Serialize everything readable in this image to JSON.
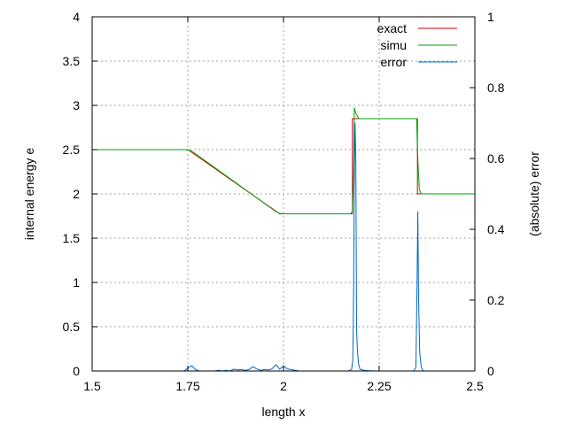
{
  "chart_data": {
    "type": "line",
    "xlabel": "length x",
    "ylabel": "internal energy e",
    "y2label": "(absolute) error",
    "xlim": [
      1.5,
      2.5
    ],
    "ylim": [
      0,
      4
    ],
    "y2lim": [
      0,
      1
    ],
    "xticks": [
      "1.5",
      "1.75",
      "2",
      "2.25",
      "2.5"
    ],
    "yticks": [
      "0",
      "0.5",
      "1",
      "1.5",
      "2",
      "2.5",
      "3",
      "3.5",
      "4"
    ],
    "y2ticks": [
      "0",
      "0.2",
      "0.4",
      "0.6",
      "0.8",
      "1"
    ],
    "grid": true,
    "legend_position": "top-right",
    "series": [
      {
        "name": "exact",
        "axis": "left",
        "color": "#cc0000",
        "points": [
          [
            1.5,
            2.5
          ],
          [
            1.75,
            2.5
          ],
          [
            1.99,
            1.775
          ],
          [
            2.18,
            1.775
          ],
          [
            2.18,
            2.85
          ],
          [
            2.35,
            2.85
          ],
          [
            2.35,
            2.0
          ],
          [
            2.5,
            2.0
          ]
        ]
      },
      {
        "name": "simu",
        "axis": "left",
        "color": "#00a000",
        "points": [
          [
            1.5,
            2.5
          ],
          [
            1.745,
            2.5
          ],
          [
            1.76,
            2.485
          ],
          [
            1.98,
            1.8
          ],
          [
            1.99,
            1.78
          ],
          [
            2.0,
            1.775
          ],
          [
            2.175,
            1.775
          ],
          [
            2.18,
            1.8
          ],
          [
            2.183,
            2.2
          ],
          [
            2.185,
            2.97
          ],
          [
            2.19,
            2.9
          ],
          [
            2.197,
            2.85
          ],
          [
            2.348,
            2.85
          ],
          [
            2.35,
            2.5
          ],
          [
            2.352,
            2.3
          ],
          [
            2.355,
            2.05
          ],
          [
            2.36,
            2.0
          ],
          [
            2.5,
            2.0
          ]
        ]
      },
      {
        "name": "error",
        "axis": "right",
        "color": "#0066cc",
        "points": [
          [
            1.5,
            0
          ],
          [
            1.74,
            0
          ],
          [
            1.75,
            0.008
          ],
          [
            1.76,
            0.015
          ],
          [
            1.77,
            0.004
          ],
          [
            1.78,
            0
          ],
          [
            1.82,
            0
          ],
          [
            1.83,
            0.002
          ],
          [
            1.84,
            0
          ],
          [
            1.85,
            0.002
          ],
          [
            1.86,
            0
          ],
          [
            1.87,
            0.005
          ],
          [
            1.88,
            0.003
          ],
          [
            1.89,
            0.004
          ],
          [
            1.9,
            0.002
          ],
          [
            1.91,
            0.004
          ],
          [
            1.92,
            0.012
          ],
          [
            1.93,
            0.006
          ],
          [
            1.94,
            0.002
          ],
          [
            1.95,
            0.004
          ],
          [
            1.96,
            0.003
          ],
          [
            1.97,
            0.006
          ],
          [
            1.98,
            0.018
          ],
          [
            1.99,
            0.005
          ],
          [
            2.0,
            0.014
          ],
          [
            2.01,
            0.006
          ],
          [
            2.02,
            0.004
          ],
          [
            2.03,
            0.002
          ],
          [
            2.04,
            0
          ],
          [
            2.17,
            0
          ],
          [
            2.178,
            0.005
          ],
          [
            2.181,
            0.03
          ],
          [
            2.183,
            0.2
          ],
          [
            2.185,
            0.55
          ],
          [
            2.187,
            0.7
          ],
          [
            2.189,
            0.6
          ],
          [
            2.191,
            0.12
          ],
          [
            2.193,
            0.06
          ],
          [
            2.196,
            0.02
          ],
          [
            2.2,
            0.005
          ],
          [
            2.21,
            0.002
          ],
          [
            2.22,
            0.001
          ],
          [
            2.24,
            0
          ],
          [
            2.34,
            0
          ],
          [
            2.346,
            0.01
          ],
          [
            2.349,
            0.25
          ],
          [
            2.351,
            0.45
          ],
          [
            2.353,
            0.2
          ],
          [
            2.356,
            0.05
          ],
          [
            2.36,
            0.01
          ],
          [
            2.365,
            0
          ],
          [
            2.5,
            0
          ]
        ]
      }
    ]
  }
}
